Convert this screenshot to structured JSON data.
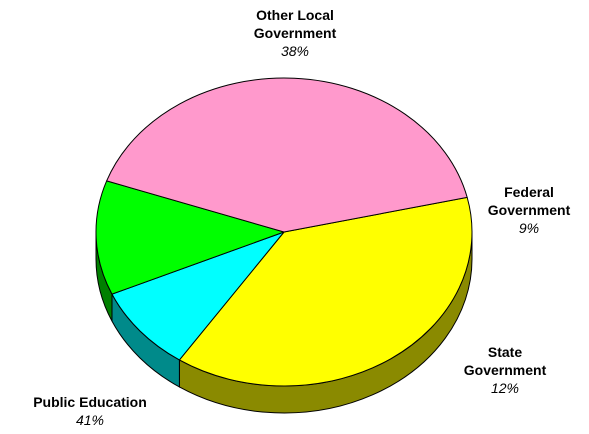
{
  "chart_data": {
    "type": "pie",
    "title": "",
    "slices": [
      {
        "name": "Other Local\nGovernment",
        "value": 38,
        "percent_label": "38%",
        "color": "#ffff00",
        "side_color": "#8a8a00"
      },
      {
        "name": "Federal\nGovernment",
        "value": 9,
        "percent_label": "9%",
        "color": "#00ffff",
        "side_color": "#008a8a"
      },
      {
        "name": "State\nGovernment",
        "value": 12,
        "percent_label": "12%",
        "color": "#00ff00",
        "side_color": "#008000"
      },
      {
        "name": "Public Education",
        "value": 41,
        "percent_label": "41%",
        "color": "#ff99cc",
        "side_color": "#8a4f6a"
      }
    ],
    "style": "3d-pie",
    "legend": "none",
    "outline_color": "#000000"
  }
}
